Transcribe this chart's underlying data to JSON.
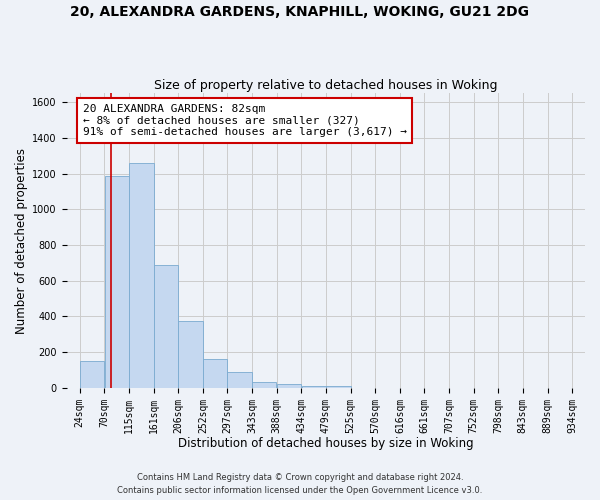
{
  "title1": "20, ALEXANDRA GARDENS, KNAPHILL, WOKING, GU21 2DG",
  "title2": "Size of property relative to detached houses in Woking",
  "xlabel": "Distribution of detached houses by size in Woking",
  "ylabel": "Number of detached properties",
  "bar_color": "#c5d8f0",
  "bar_edge_color": "#7aaad0",
  "bar_left_edges": [
    24,
    70,
    115,
    161,
    206,
    252,
    297,
    343,
    388,
    434,
    479,
    525,
    570,
    616,
    661,
    707,
    752,
    798,
    843,
    889
  ],
  "bar_widths": [
    46,
    45,
    46,
    45,
    46,
    45,
    46,
    45,
    46,
    45,
    46,
    45,
    46,
    45,
    46,
    45,
    46,
    45,
    46,
    45
  ],
  "bar_heights": [
    150,
    1185,
    1260,
    690,
    375,
    160,
    90,
    35,
    20,
    10,
    8,
    0,
    0,
    0,
    0,
    0,
    0,
    0,
    0,
    0
  ],
  "x_tick_positions": [
    24,
    70,
    115,
    161,
    206,
    252,
    297,
    343,
    388,
    434,
    479,
    525,
    570,
    616,
    661,
    707,
    752,
    798,
    843,
    889,
    934
  ],
  "x_tick_labels": [
    "24sqm",
    "70sqm",
    "115sqm",
    "161sqm",
    "206sqm",
    "252sqm",
    "297sqm",
    "343sqm",
    "388sqm",
    "434sqm",
    "479sqm",
    "525sqm",
    "570sqm",
    "616sqm",
    "661sqm",
    "707sqm",
    "752sqm",
    "798sqm",
    "843sqm",
    "889sqm",
    "934sqm"
  ],
  "ylim": [
    0,
    1650
  ],
  "xlim": [
    0,
    958
  ],
  "yticks": [
    0,
    200,
    400,
    600,
    800,
    1000,
    1200,
    1400,
    1600
  ],
  "vline_x": 82,
  "vline_color": "#cc0000",
  "annotation_text": "20 ALEXANDRA GARDENS: 82sqm\n← 8% of detached houses are smaller (327)\n91% of semi-detached houses are larger (3,617) →",
  "annotation_box_color": "#ffffff",
  "annotation_border_color": "#cc0000",
  "grid_color": "#cccccc",
  "background_color": "#eef2f8",
  "footer_text": "Contains HM Land Registry data © Crown copyright and database right 2024.\nContains public sector information licensed under the Open Government Licence v3.0.",
  "title_fontsize": 10,
  "subtitle_fontsize": 9,
  "axis_label_fontsize": 8.5,
  "tick_fontsize": 7,
  "annotation_fontsize": 8,
  "footer_fontsize": 6
}
